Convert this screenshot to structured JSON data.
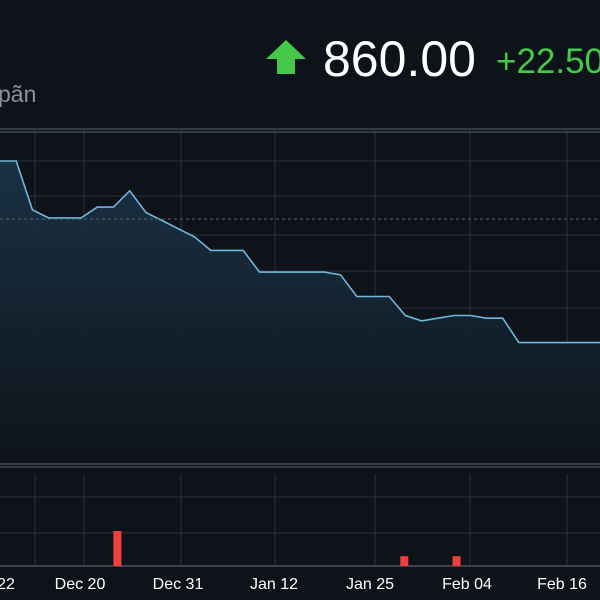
{
  "header": {
    "price": "860.00",
    "change": "+22.50",
    "subtitle": "pãn",
    "arrow_icon": "up-arrow-icon",
    "up_color": "#45c84a"
  },
  "chart_data": {
    "type": "line",
    "title": "",
    "xlabel": "",
    "ylabel": "",
    "x_tick_labels": [
      "22",
      "Dec 20",
      "Dec 31",
      "Jan 12",
      "Jan 25",
      "Feb 04",
      "Feb 16"
    ],
    "ylim": [
      0,
      100
    ],
    "price_series": {
      "name": "",
      "values": [
        100,
        100,
        82,
        79,
        79,
        79,
        83,
        83,
        89,
        81,
        78,
        75,
        72,
        67,
        67,
        67,
        59,
        59,
        59,
        59,
        59,
        58,
        50,
        50,
        50,
        43,
        41,
        42,
        43,
        43,
        42,
        42,
        33,
        33,
        33,
        33,
        33,
        33
      ]
    },
    "volume_series": {
      "name": "",
      "values": [
        0,
        0,
        0,
        0,
        1.0,
        0,
        0,
        0,
        0,
        0,
        0,
        0,
        0,
        0,
        0,
        0.28,
        0,
        0.28,
        0,
        0,
        0,
        0,
        0
      ]
    },
    "line_color": "#6fb6dc",
    "volume_color": "#ef4040",
    "grid": true
  }
}
